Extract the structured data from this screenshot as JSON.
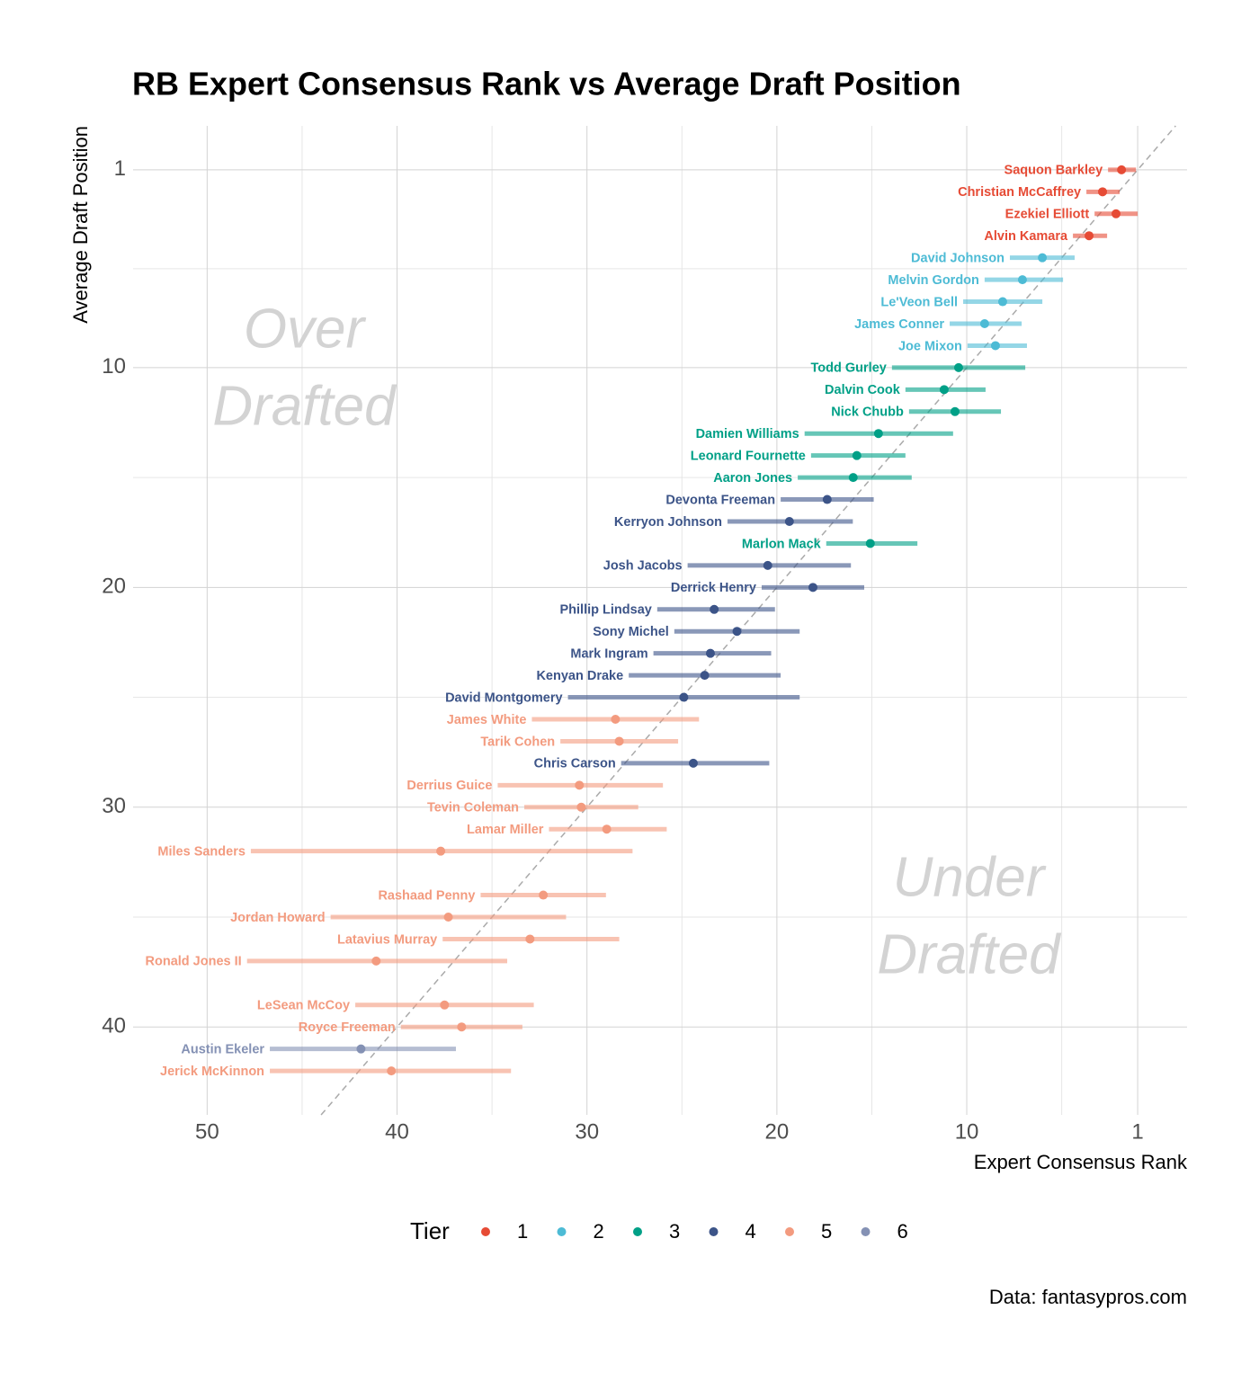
{
  "chart_data": {
    "type": "scatter",
    "title": "RB Expert Consensus Rank vs Average Draft Position",
    "x_label": "Expert Consensus Rank",
    "y_label": "Average Draft Position",
    "legend_title": "Tier",
    "legend_position": "bottom",
    "caption": "Data: fantasypros.com",
    "annotations": [
      {
        "lines": [
          "Over",
          "Drafted"
        ]
      },
      {
        "lines": [
          "Under",
          "Drafted"
        ]
      }
    ],
    "xlim": [
      53.9,
      -1.6
    ],
    "ylim": [
      44,
      -1
    ],
    "xticks": [
      50,
      40,
      30,
      20,
      10,
      1
    ],
    "yticks": [
      1,
      10,
      20,
      30,
      40
    ],
    "x_minor_grid": [
      45,
      35,
      25,
      15,
      5
    ],
    "y_minor_grid": [
      5.5,
      15,
      25,
      35
    ],
    "grid": true,
    "series": [
      {
        "name": "1",
        "color": "#E64B35",
        "labels": [
          "Saquon Barkley",
          "Christian McCaffrey",
          "Ezekiel Elliott",
          "Alvin Kamara"
        ],
        "x": [
          1.85,
          2.85,
          2.14,
          3.56
        ],
        "x_low": [
          2.56,
          3.7,
          3.27,
          4.41
        ],
        "x_high": [
          1.09,
          1.95,
          1.0,
          2.61
        ],
        "values": [
          1,
          2,
          3,
          4
        ]
      },
      {
        "name": "2",
        "color": "#4DBBD5",
        "labels": [
          "David Johnson",
          "Melvin Gordon",
          "Le'Veon Bell",
          "James Conner",
          "Joe Mixon"
        ],
        "x": [
          6.02,
          7.07,
          8.11,
          9.06,
          8.49
        ],
        "x_low": [
          7.73,
          9.06,
          10.19,
          10.9,
          9.96
        ],
        "x_high": [
          4.32,
          4.93,
          6.02,
          7.11,
          6.83
        ],
        "values": [
          5,
          6,
          7,
          8,
          9
        ]
      },
      {
        "name": "3",
        "color": "#00A087",
        "labels": [
          "Todd Gurley",
          "Dalvin Cook",
          "Nick Chubb",
          "Damien Williams",
          "Leonard Fournette",
          "Aaron Jones",
          "Marlon Mack"
        ],
        "x": [
          10.43,
          11.19,
          10.62,
          14.65,
          15.79,
          15.98,
          15.08
        ],
        "x_low": [
          13.94,
          13.23,
          13.04,
          18.54,
          18.2,
          18.9,
          17.4
        ],
        "x_high": [
          6.92,
          9.01,
          8.2,
          10.72,
          13.23,
          12.9,
          12.6
        ],
        "values": [
          10,
          11,
          12,
          13,
          14,
          15,
          18
        ]
      },
      {
        "name": "4",
        "color": "#3C5488",
        "labels": [
          "Devonta Freeman",
          "Kerryon Johnson",
          "Josh Jacobs",
          "Derrick Henry",
          "Phillip Lindsay",
          "Sony Michel",
          "Mark Ingram",
          "Kenyan Drake",
          "David Montgomery",
          "Chris Carson"
        ],
        "x": [
          17.35,
          19.34,
          20.48,
          18.1,
          23.3,
          22.1,
          23.5,
          23.8,
          24.9,
          24.4
        ],
        "x_low": [
          19.8,
          22.6,
          24.7,
          20.8,
          26.3,
          25.4,
          26.5,
          27.8,
          31.0,
          28.2
        ],
        "x_high": [
          14.9,
          16.0,
          16.1,
          15.4,
          20.1,
          18.8,
          20.3,
          19.8,
          18.8,
          20.4
        ],
        "values": [
          16,
          17,
          19,
          20,
          21,
          22,
          23,
          24,
          25,
          28
        ]
      },
      {
        "name": "5",
        "color": "#F39B7F",
        "labels": [
          "James White",
          "Tarik Cohen",
          "Derrius Guice",
          "Tevin Coleman",
          "Lamar Miller",
          "Miles Sanders",
          "Rashaad Penny",
          "Jordan Howard",
          "Latavius Murray",
          "Ronald Jones II",
          "LeSean McCoy",
          "Royce Freeman",
          "Jerick McKinnon"
        ],
        "x": [
          28.5,
          28.3,
          30.4,
          30.3,
          28.96,
          37.7,
          32.3,
          37.3,
          33.0,
          41.1,
          37.5,
          36.6,
          40.3
        ],
        "x_low": [
          32.9,
          31.4,
          34.7,
          33.3,
          32.0,
          47.7,
          35.6,
          43.5,
          37.6,
          47.9,
          42.2,
          39.8,
          46.7
        ],
        "x_high": [
          24.1,
          25.2,
          26.0,
          27.3,
          25.8,
          27.6,
          29.0,
          31.1,
          28.3,
          34.2,
          32.8,
          33.4,
          34.0
        ],
        "values": [
          26,
          27,
          29,
          30,
          31,
          32,
          34,
          35,
          36,
          37,
          39,
          40,
          42
        ]
      },
      {
        "name": "6",
        "color": "#8491B4",
        "labels": [
          "Austin Ekeler"
        ],
        "x": [
          41.9
        ],
        "x_low": [
          46.7
        ],
        "x_high": [
          36.9
        ],
        "values": [
          41
        ]
      }
    ]
  }
}
